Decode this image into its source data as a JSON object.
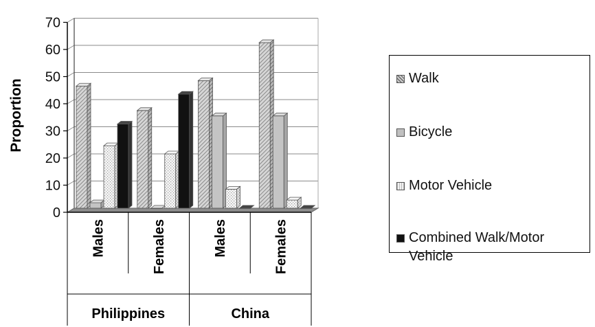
{
  "chart_data": {
    "type": "bar",
    "ylabel": "Proportion",
    "ylim": [
      0,
      70
    ],
    "yticks": [
      0,
      10,
      20,
      30,
      40,
      50,
      60,
      70
    ],
    "groups": [
      {
        "label": "Philippines",
        "subcategories": [
          "Males",
          "Females"
        ]
      },
      {
        "label": "China",
        "subcategories": [
          "Males",
          "Females"
        ]
      }
    ],
    "categories": [
      "Philippines Males",
      "Philippines Females",
      "China Males",
      "China Females"
    ],
    "series": [
      {
        "name": "Walk",
        "values": [
          45,
          36,
          47,
          61
        ],
        "color": "#bdbdbd",
        "pattern": "diagonal-hatch"
      },
      {
        "name": "Bicycle",
        "values": [
          2,
          0,
          34,
          34
        ],
        "color": "#c4c4c4",
        "pattern": "solid"
      },
      {
        "name": "Motor Vehicle",
        "values": [
          23,
          20,
          7,
          3
        ],
        "color": "#eeeeee",
        "pattern": "speckle"
      },
      {
        "name": "Combined Walk/Motor Vehicle",
        "values": [
          31,
          42,
          0,
          0
        ],
        "color": "#111111",
        "pattern": "solid"
      }
    ],
    "grid": true,
    "legend_position": "right"
  }
}
